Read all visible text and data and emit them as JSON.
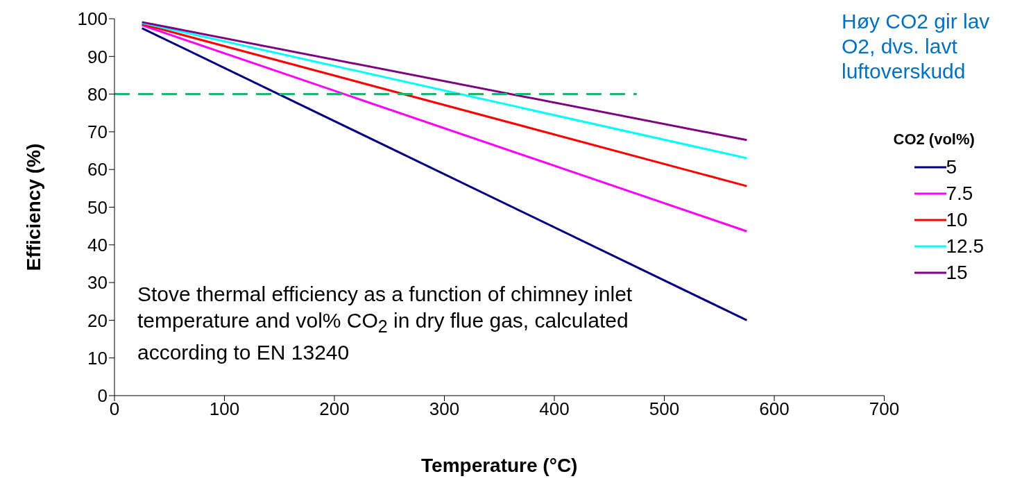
{
  "chart_data": {
    "type": "line",
    "xlabel": "Temperature (°C)",
    "ylabel": "Efficiency (%)",
    "legend_title": "CO2 (vol%)",
    "legend": "right",
    "xlim": [
      0,
      700
    ],
    "xticks": [
      0,
      100,
      200,
      300,
      400,
      500,
      600,
      700
    ],
    "ylim": [
      0,
      100
    ],
    "yticks": [
      0,
      10,
      20,
      30,
      40,
      50,
      60,
      70,
      80,
      90,
      100
    ],
    "marker": "none",
    "line_style": "solid",
    "series": [
      {
        "name": "5",
        "color": "#000080",
        "x": [
          25,
          575
        ],
        "values": [
          97.5,
          20
        ]
      },
      {
        "name": "7.5",
        "color": "#ff00ff",
        "x": [
          25,
          575
        ],
        "values": [
          98.3,
          43.6
        ]
      },
      {
        "name": "10",
        "color": "#ff0000",
        "x": [
          25,
          575
        ],
        "values": [
          98.6,
          55.6
        ]
      },
      {
        "name": "12.5",
        "color": "#00ffff",
        "x": [
          25,
          575
        ],
        "values": [
          98.9,
          63
        ]
      },
      {
        "name": "15",
        "color": "#800080",
        "x": [
          25,
          575
        ],
        "values": [
          99.1,
          67.8
        ]
      },
      {
        "color": "#21b573",
        "x": [
          0,
          475
        ],
        "values": [
          80,
          80
        ],
        "line_style": "dashed"
      }
    ],
    "annotations": [
      "Høy CO2 gir lav O2, dvs. lavt luftoverskudd",
      "Stove thermal efficiency as a function of chimney inlet temperature and vol% CO$_{2}$ in dry flue gas, calculated according to EN 13240"
    ]
  }
}
